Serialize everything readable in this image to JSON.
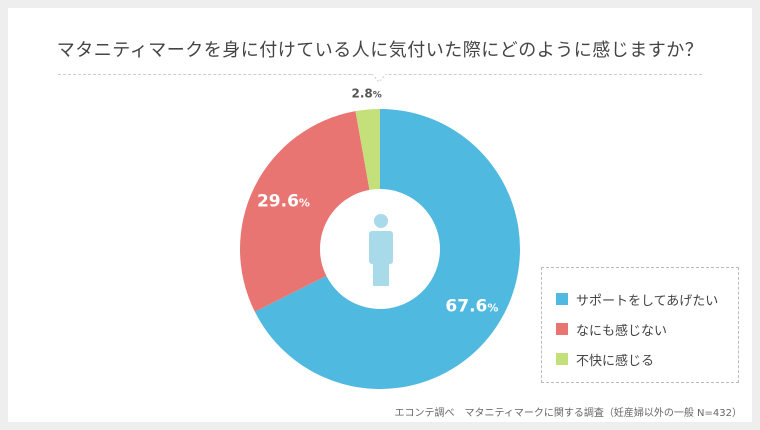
{
  "chart_data": {
    "type": "pie",
    "title": "マタニティマークを身に付けている人に気付いた際にどのように感じますか？",
    "categories": [
      "サポートをしてあげたい",
      "なにも感じない",
      "不快に感じる"
    ],
    "values": [
      67.6,
      29.6,
      2.8
    ],
    "value_labels": [
      "67.6",
      "29.6",
      "2.8"
    ],
    "unit": "%",
    "colors": [
      "#50b9e0",
      "#e87572",
      "#c3e07a"
    ],
    "legend_position": "right",
    "source": "エコンテ調べ　マタニティマークに関する調査（妊産婦以外の一般 N=432）"
  },
  "center_icon": "person-icon"
}
